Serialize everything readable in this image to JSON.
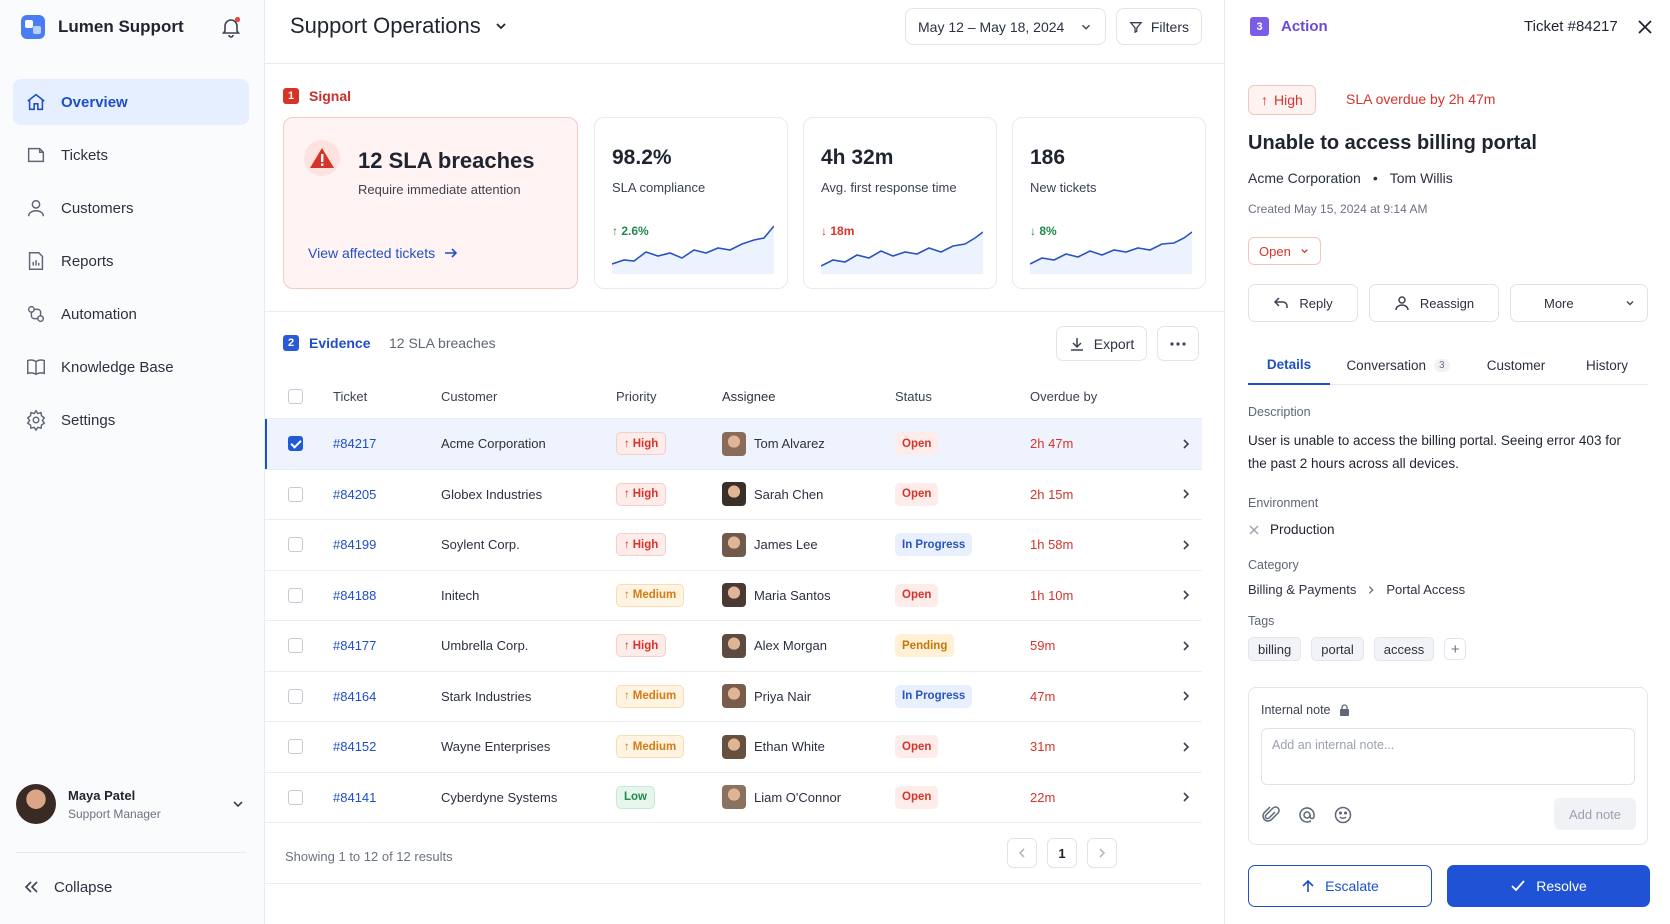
{
  "app": {
    "name": "Lumen Support"
  },
  "sidebar": {
    "items": [
      {
        "label": "Overview",
        "icon": "home-icon",
        "active": true
      },
      {
        "label": "Tickets",
        "icon": "ticket-icon"
      },
      {
        "label": "Customers",
        "icon": "user-icon"
      },
      {
        "label": "Reports",
        "icon": "report-icon"
      },
      {
        "label": "Automation",
        "icon": "automation-icon"
      },
      {
        "label": "Knowledge Base",
        "icon": "book-icon"
      },
      {
        "label": "Settings",
        "icon": "gear-icon"
      }
    ],
    "user": {
      "name": "Maya Patel",
      "role": "Support Manager"
    },
    "collapse_label": "Collapse"
  },
  "header": {
    "title": "Support Operations",
    "date_range": "May 12 – May 18, 2024",
    "filters_label": "Filters"
  },
  "signal": {
    "badge": "1",
    "label": "Signal",
    "breach_title": "12 SLA breaches",
    "breach_sub": "Require immediate attention",
    "view_link": "View affected tickets",
    "metrics": [
      {
        "value": "98.2%",
        "label": "SLA compliance",
        "delta": "2.6%",
        "direction": "up",
        "color": "#1f8a4c"
      },
      {
        "value": "4h 32m",
        "label": "Avg. first response time",
        "delta": "18m",
        "direction": "down",
        "color": "#d6342a"
      },
      {
        "value": "186",
        "label": "New tickets",
        "delta": "8%",
        "direction": "down",
        "color": "#1f8a4c"
      }
    ]
  },
  "evidence": {
    "badge": "2",
    "label": "Evidence",
    "count_label": "12 SLA breaches",
    "export_label": "Export",
    "columns": [
      "Ticket",
      "Customer",
      "Priority",
      "Assignee",
      "Status",
      "Overdue by"
    ],
    "rows": [
      {
        "id": "#84217",
        "customer": "Acme Corporation",
        "priority": "High",
        "assignee": "Tom Alvarez",
        "status": "Open",
        "overdue": "2h 47m",
        "selected": true
      },
      {
        "id": "#84205",
        "customer": "Globex Industries",
        "priority": "High",
        "assignee": "Sarah Chen",
        "status": "Open",
        "overdue": "2h 15m"
      },
      {
        "id": "#84199",
        "customer": "Soylent Corp.",
        "priority": "High",
        "assignee": "James Lee",
        "status": "In Progress",
        "overdue": "1h 58m"
      },
      {
        "id": "#84188",
        "customer": "Initech",
        "priority": "Medium",
        "assignee": "Maria Santos",
        "status": "Open",
        "overdue": "1h 10m"
      },
      {
        "id": "#84177",
        "customer": "Umbrella Corp.",
        "priority": "High",
        "assignee": "Alex Morgan",
        "status": "Pending",
        "overdue": "59m"
      },
      {
        "id": "#84164",
        "customer": "Stark Industries",
        "priority": "Medium",
        "assignee": "Priya Nair",
        "status": "In Progress",
        "overdue": "47m"
      },
      {
        "id": "#84152",
        "customer": "Wayne Enterprises",
        "priority": "Medium",
        "assignee": "Ethan White",
        "status": "Open",
        "overdue": "31m"
      },
      {
        "id": "#84141",
        "customer": "Cyberdyne Systems",
        "priority": "Low",
        "assignee": "Liam O'Connor",
        "status": "Open",
        "overdue": "22m"
      }
    ],
    "showing": "Showing 1 to 12 of 12 results",
    "page": "1"
  },
  "panel": {
    "badge": "3",
    "label": "Action",
    "ticket_id": "Ticket #84217",
    "priority": "High",
    "sla_text": "SLA overdue by 2h 47m",
    "title": "Unable to access billing portal",
    "company": "Acme Corporation",
    "requester": "Tom Willis",
    "created": "Created May 15, 2024 at 9:14 AM",
    "status": "Open",
    "actions": {
      "reply": "Reply",
      "reassign": "Reassign",
      "more": "More"
    },
    "tabs": [
      {
        "label": "Details",
        "active": true
      },
      {
        "label": "Conversation",
        "count": "3"
      },
      {
        "label": "Customer"
      },
      {
        "label": "History"
      }
    ],
    "description_label": "Description",
    "description": "User is unable to access the billing portal. Seeing error 403 for the past 2 hours across all devices.",
    "environment_label": "Environment",
    "environment": "Production",
    "category_label": "Category",
    "category_parent": "Billing & Payments",
    "category_child": "Portal Access",
    "tags_label": "Tags",
    "tags": [
      "billing",
      "portal",
      "access"
    ],
    "note_label": "Internal note",
    "note_placeholder": "Add an internal note...",
    "add_note": "Add note",
    "escalate": "Escalate",
    "resolve": "Resolve"
  },
  "colors": {
    "accent": "#1f4fc7",
    "danger": "#d6342a",
    "success": "#1f8a4c",
    "warning": "#d57a12",
    "action": "#6a4bd8"
  }
}
